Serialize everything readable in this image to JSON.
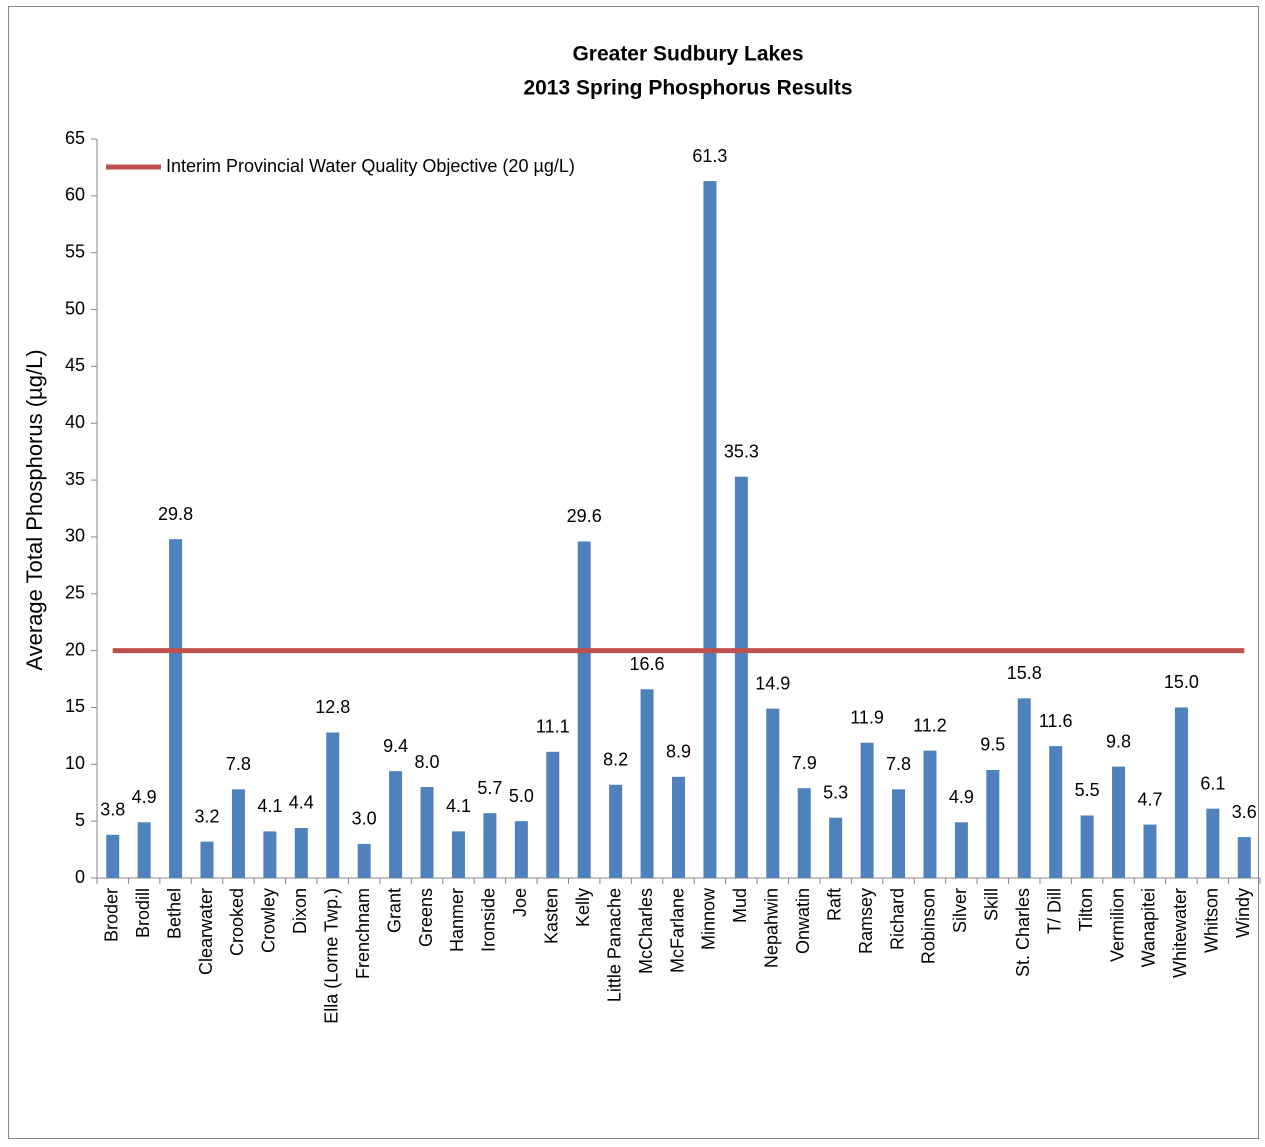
{
  "chart_data": {
    "type": "bar",
    "title": [
      "Greater Sudbury Lakes",
      "2013 Spring Phosphorus Results"
    ],
    "y_label": "Average Total Phosphorus (µg/L)",
    "categories": [
      "Broder",
      "Brodill",
      "Bethel",
      "Clearwater",
      "Crooked",
      "Crowley",
      "Dixon",
      "Ella (Lorne Twp.)",
      "Frenchnam",
      "Grant",
      "Greens",
      "Hanmer",
      "Ironside",
      "Joe",
      "Kasten",
      "Kelly",
      "Little Panache",
      "McCharles",
      "McFarlane",
      "Minnow",
      "Mud",
      "Nepahwin",
      "Onwatin",
      "Raft",
      "Ramsey",
      "Richard",
      "Robinson",
      "Silver",
      "Skill",
      "St. Charles",
      "T/ Dill",
      "Tilton",
      "Vermilion",
      "Wanapitei",
      "Whitewater",
      "Whitson",
      "Windy"
    ],
    "series": [
      {
        "type": "bar",
        "color": "#4f81bd",
        "values": [
          3.8,
          4.9,
          29.8,
          3.2,
          7.8,
          4.1,
          4.4,
          12.8,
          3.0,
          9.4,
          8.0,
          4.1,
          5.7,
          5.0,
          11.1,
          29.6,
          8.2,
          16.6,
          8.9,
          61.3,
          35.3,
          14.9,
          7.9,
          5.3,
          11.9,
          7.8,
          11.2,
          4.9,
          9.5,
          15.8,
          11.6,
          5.5,
          9.8,
          4.7,
          15.0,
          6.1,
          3.6
        ],
        "value_labels": [
          "3.8",
          "4.9",
          "29.8",
          "3.2",
          "7.8",
          "4.1",
          "4.4",
          "12.8",
          "3.0",
          "9.4",
          "8.0",
          "4.1",
          "5.7",
          "5.0",
          "11.1",
          "29.6",
          "8.2",
          "16.6",
          "8.9",
          "61.3",
          "35.3",
          "14.9",
          "7.9",
          "5.3",
          "11.9",
          "7.8",
          "11.2",
          "4.9",
          "9.5",
          "15.8",
          "11.6",
          "5.5",
          "9.8",
          "4.7",
          "15.0",
          "6.1",
          "3.6"
        ]
      },
      {
        "type": "line",
        "name": "Interim Provincial Water Quality Objective (20 µg/L)",
        "color": "#c0504d",
        "values": [
          20,
          20,
          20,
          20,
          20,
          20,
          20,
          20,
          20,
          20,
          20,
          20,
          20,
          20,
          20,
          20,
          20,
          20,
          20,
          20,
          20,
          20,
          20,
          20,
          20,
          20,
          20,
          20,
          20,
          20,
          20,
          20,
          20,
          20,
          20,
          20,
          20
        ]
      }
    ],
    "ylim": [
      0,
      65
    ],
    "yticks": [
      0,
      5,
      10,
      15,
      20,
      25,
      30,
      35,
      40,
      45,
      50,
      55,
      60,
      65
    ],
    "legend": "top-left"
  }
}
